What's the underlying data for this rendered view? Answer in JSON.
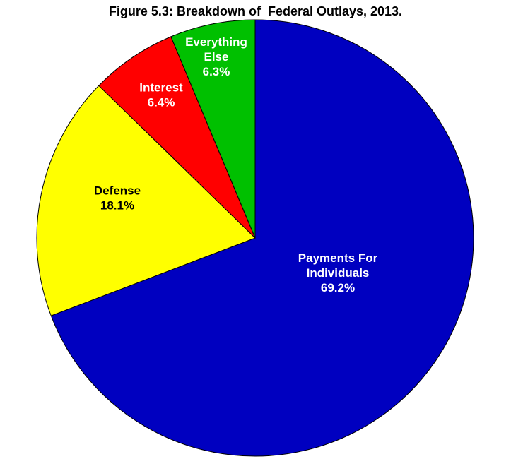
{
  "chart_data": {
    "type": "pie",
    "title": "Figure 5.3: Breakdown of  Federal Outlays, 2013.",
    "slices": [
      {
        "lines": [
          "Payments For",
          "Individuals"
        ],
        "pct_label": "69.2%",
        "value": 69.2,
        "color": "#0000c0",
        "text_color": "#ffffff"
      },
      {
        "lines": [
          "Defense"
        ],
        "pct_label": "18.1%",
        "value": 18.1,
        "color": "#ffff00",
        "text_color": "#000000"
      },
      {
        "lines": [
          "Interest"
        ],
        "pct_label": "6.4%",
        "value": 6.4,
        "color": "#ff0000",
        "text_color": "#ffffff"
      },
      {
        "lines": [
          "Everything",
          "Else"
        ],
        "pct_label": "6.3%",
        "value": 6.3,
        "color": "#00c000",
        "text_color": "#ffffff"
      }
    ],
    "start": "12 o'clock",
    "direction": "clockwise"
  }
}
